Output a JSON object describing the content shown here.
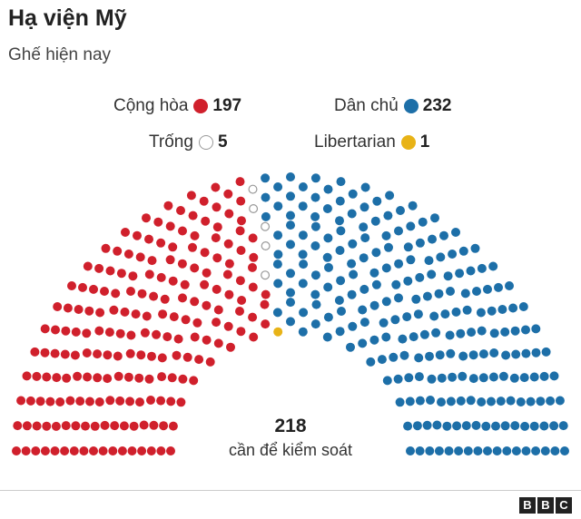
{
  "title": "Hạ viện Mỹ",
  "subtitle": "Ghế hiện nay",
  "chart_data": {
    "type": "parliament",
    "total_seats": 435,
    "majority_value": "218",
    "majority_label": "cần để kiểm soát",
    "series": [
      {
        "name": "Cộng hòa",
        "value": 197,
        "color": "#d0202c"
      },
      {
        "name": "Trống",
        "value": 5,
        "color": "#ffffff",
        "outline": "#999999"
      },
      {
        "name": "Libertarian",
        "value": 1,
        "color": "#e8b317"
      },
      {
        "name": "Dân chủ",
        "value": 232,
        "color": "#1d6fa8"
      }
    ]
  },
  "legend": [
    {
      "label": "Cộng hòa",
      "count": "197",
      "color": "#d0202c"
    },
    {
      "label": "Dân chủ",
      "count": "232",
      "color": "#1d6fa8"
    },
    {
      "label": "Trống",
      "count": "5",
      "color": "#ffffff",
      "outline": "#999999"
    },
    {
      "label": "Libertarian",
      "count": "1",
      "color": "#e8b317"
    }
  ],
  "logo": [
    "B",
    "B",
    "C"
  ]
}
